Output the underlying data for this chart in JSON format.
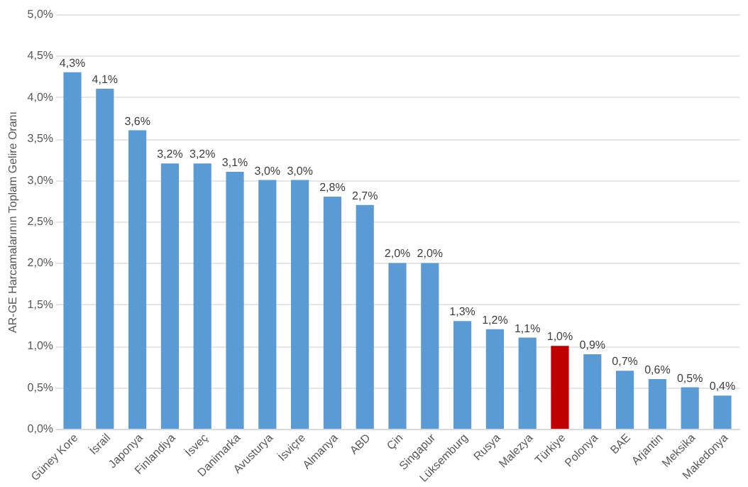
{
  "chart_data": {
    "type": "bar",
    "ylabel": "AR-GE Harcamalarının Toplam Gelire Oranı",
    "categories": [
      "Güney Kore",
      "İsrail",
      "Japonya",
      "Finlandiya",
      "İsveç",
      "Danimarka",
      "Avusturya",
      "İsviçre",
      "Almanya",
      "ABD",
      "Çin",
      "Singapur",
      "Lüksemburg",
      "Rusya",
      "Malezya",
      "Türkiye",
      "Polonya",
      "BAE",
      "Arjantin",
      "Meksika",
      "Makedonya"
    ],
    "values": [
      4.3,
      4.1,
      3.6,
      3.2,
      3.2,
      3.1,
      3.0,
      3.0,
      2.8,
      2.7,
      2.0,
      2.0,
      1.3,
      1.2,
      1.1,
      1.0,
      0.9,
      0.7,
      0.6,
      0.5,
      0.4
    ],
    "colors": [
      "#5b9bd5",
      "#5b9bd5",
      "#5b9bd5",
      "#5b9bd5",
      "#5b9bd5",
      "#5b9bd5",
      "#5b9bd5",
      "#5b9bd5",
      "#5b9bd5",
      "#5b9bd5",
      "#5b9bd5",
      "#5b9bd5",
      "#5b9bd5",
      "#5b9bd5",
      "#5b9bd5",
      "#c00000",
      "#5b9bd5",
      "#5b9bd5",
      "#5b9bd5",
      "#5b9bd5",
      "#5b9bd5"
    ],
    "value_labels": [
      "4,3%",
      "4,1%",
      "3,6%",
      "3,2%",
      "3,2%",
      "3,1%",
      "3,0%",
      "3,0%",
      "2,8%",
      "2,7%",
      "2,0%",
      "2,0%",
      "1,3%",
      "1,2%",
      "1,1%",
      "1,0%",
      "0,9%",
      "0,7%",
      "0,6%",
      "0,5%",
      "0,4%"
    ],
    "ylim": [
      0,
      5
    ],
    "yticks": [
      {
        "value": 0,
        "label": "0,0%"
      },
      {
        "value": 0.5,
        "label": "0,5%"
      },
      {
        "value": 1,
        "label": "1,0%"
      },
      {
        "value": 1.5,
        "label": "1,5%"
      },
      {
        "value": 2,
        "label": "2,0%"
      },
      {
        "value": 2.5,
        "label": "2,5%"
      },
      {
        "value": 3,
        "label": "3,0%"
      },
      {
        "value": 3.5,
        "label": "3,5%"
      },
      {
        "value": 4,
        "label": "4,0%"
      },
      {
        "value": 4.5,
        "label": "4,5%"
      },
      {
        "value": 5,
        "label": "5,0%"
      }
    ],
    "grid": "y"
  }
}
